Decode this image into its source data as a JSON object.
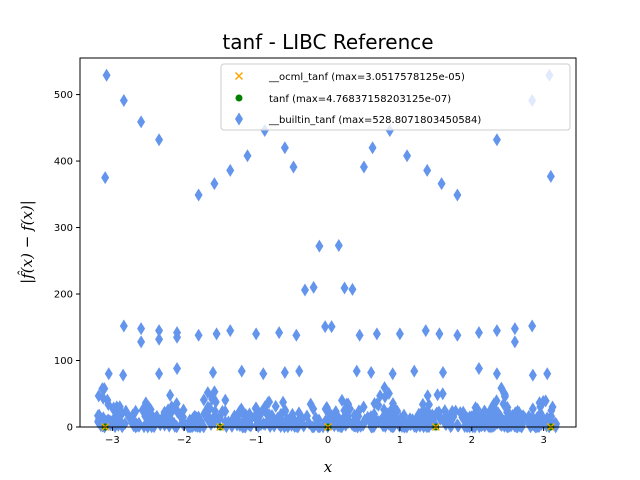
{
  "chart_data": {
    "type": "scatter",
    "title": "tanf - LIBC Reference",
    "xlabel": "x",
    "ylabel": "|f̂(x) − f(x)|",
    "xlim": [
      -3.45,
      3.45
    ],
    "ylim": [
      0,
      555
    ],
    "xticks": [
      -3,
      -2,
      -1,
      0,
      1,
      2,
      3
    ],
    "yticks": [
      0,
      100,
      200,
      300,
      400,
      500
    ],
    "grid": false,
    "legend_position": "top-right",
    "colors": {
      "ocml": "#ffa500",
      "tanf": "#008000",
      "builtin": "#6495ed"
    },
    "series": [
      {
        "name": "__ocml_tanf (max=3.0517578125e-05)",
        "marker": "x",
        "color": "#ffa500",
        "points": [
          [
            -3.1,
            0
          ],
          [
            -1.5,
            0
          ],
          [
            0,
            0
          ],
          [
            1.5,
            0
          ],
          [
            3.1,
            0
          ]
        ]
      },
      {
        "name": "tanf (max=4.76837158203125e-07)",
        "marker": "o",
        "color": "#008000",
        "points": [
          [
            -3.1,
            0
          ],
          [
            -1.5,
            0
          ],
          [
            0,
            0
          ],
          [
            1.5,
            0
          ],
          [
            3.1,
            0
          ]
        ]
      },
      {
        "name": "__builtin_tanf (max=528.8071803450584)",
        "marker": "d",
        "color": "#6495ed",
        "points": [
          [
            -3.08,
            529
          ],
          [
            -3.1,
            375
          ],
          [
            -2.84,
            491
          ],
          [
            -2.6,
            459
          ],
          [
            -2.35,
            432
          ],
          [
            -1.8,
            349
          ],
          [
            -1.58,
            366
          ],
          [
            -1.36,
            386
          ],
          [
            -1.12,
            408
          ],
          [
            -0.88,
            446
          ],
          [
            -0.6,
            420
          ],
          [
            -0.48,
            391
          ],
          [
            -0.32,
            206
          ],
          [
            -0.2,
            210
          ],
          [
            -0.12,
            272
          ],
          [
            -0.04,
            151
          ],
          [
            0.05,
            151
          ],
          [
            0.15,
            273
          ],
          [
            0.23,
            209
          ],
          [
            0.34,
            207
          ],
          [
            0.5,
            391
          ],
          [
            0.62,
            420
          ],
          [
            0.86,
            446
          ],
          [
            1.1,
            408
          ],
          [
            1.38,
            386
          ],
          [
            1.58,
            366
          ],
          [
            1.8,
            349
          ],
          [
            2.35,
            432
          ],
          [
            2.84,
            491
          ],
          [
            3.08,
            529
          ],
          [
            3.1,
            377
          ],
          [
            -2.84,
            152
          ],
          [
            -2.6,
            148
          ],
          [
            -2.6,
            128
          ],
          [
            -2.35,
            145
          ],
          [
            -2.35,
            132
          ],
          [
            -2.1,
            142
          ],
          [
            -2.1,
            135
          ],
          [
            -1.8,
            138
          ],
          [
            -1.55,
            140
          ],
          [
            -1.36,
            145
          ],
          [
            -1.0,
            140
          ],
          [
            -0.68,
            142
          ],
          [
            -0.44,
            138
          ],
          [
            0.44,
            138
          ],
          [
            0.68,
            140
          ],
          [
            1.0,
            140
          ],
          [
            1.36,
            145
          ],
          [
            1.55,
            140
          ],
          [
            1.8,
            138
          ],
          [
            2.1,
            142
          ],
          [
            2.35,
            145
          ],
          [
            2.6,
            148
          ],
          [
            2.6,
            128
          ],
          [
            2.84,
            152
          ],
          [
            -2.1,
            88
          ],
          [
            -1.6,
            82
          ],
          [
            -1.2,
            84
          ],
          [
            -0.9,
            80
          ],
          [
            -0.6,
            82
          ],
          [
            -0.4,
            84
          ],
          [
            0.4,
            84
          ],
          [
            0.6,
            82
          ],
          [
            0.9,
            80
          ],
          [
            1.2,
            84
          ],
          [
            1.6,
            82
          ],
          [
            2.1,
            88
          ],
          [
            -3.05,
            80
          ],
          [
            -2.85,
            78
          ],
          [
            -2.35,
            80
          ],
          [
            2.35,
            80
          ],
          [
            2.85,
            78
          ],
          [
            3.05,
            80
          ]
        ],
        "dense_band": {
          "x_min": -3.2,
          "x_max": 3.2,
          "y_min": 0,
          "y_max": 70
        }
      }
    ]
  }
}
